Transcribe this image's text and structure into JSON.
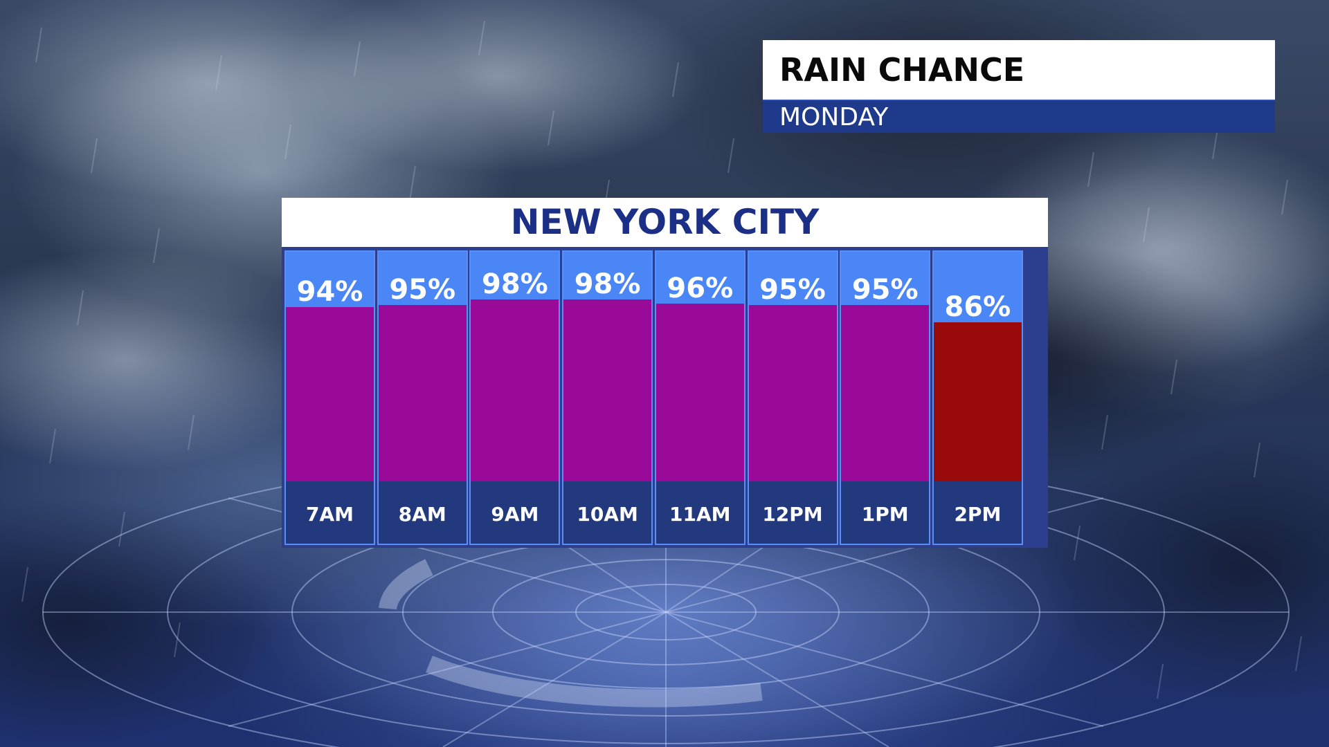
{
  "header": {
    "title": "RAIN CHANCE",
    "subtitle": "MONDAY"
  },
  "colors": {
    "column_background": "#4a86f5",
    "time_band": "#22397e",
    "bar_default": "#990a99",
    "bar_low": "#990a0a",
    "header_sub_bg": "#1f3a8a",
    "city_title_text": "#1c2f86"
  },
  "chart_data": {
    "type": "bar",
    "title": "NEW YORK CITY",
    "xlabel": "",
    "ylabel": "",
    "ylim": [
      0,
      100
    ],
    "unit": "%",
    "categories": [
      "7AM",
      "8AM",
      "9AM",
      "10AM",
      "11AM",
      "12PM",
      "1PM",
      "2PM"
    ],
    "values": [
      94,
      95,
      98,
      98,
      96,
      95,
      95,
      86
    ],
    "value_labels": [
      "94%",
      "95%",
      "98%",
      "98%",
      "96%",
      "95%",
      "95%",
      "86%"
    ],
    "bar_colors": [
      "#990a99",
      "#990a99",
      "#990a99",
      "#990a99",
      "#990a99",
      "#990a99",
      "#990a99",
      "#990a0a"
    ],
    "grid": false,
    "legend": "none"
  },
  "background": {
    "description_icon": "storm-clouds-radar-background"
  }
}
